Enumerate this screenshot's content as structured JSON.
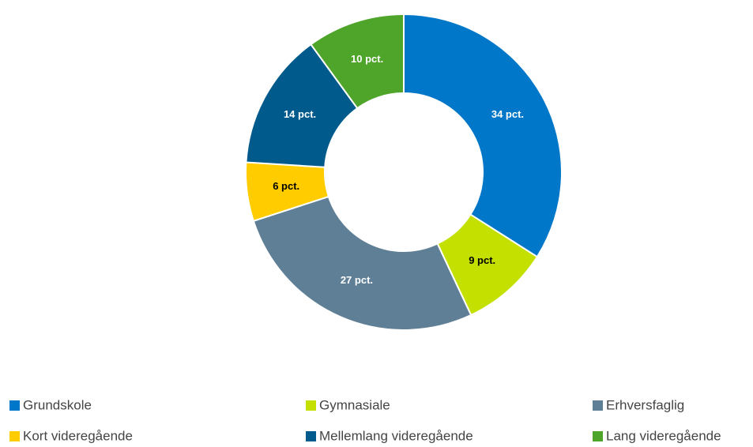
{
  "chart_data": {
    "type": "donut",
    "categories": [
      "Grundskole",
      "Gymnasiale",
      "Erhversfaglig",
      "Kort videregående",
      "Mellemlang videregående",
      "Lang videregående"
    ],
    "values": [
      34,
      9,
      27,
      6,
      14,
      10
    ],
    "value_labels": [
      "34 pct.",
      "9 pct.",
      "27 pct.",
      "6 pct.",
      "14 pct.",
      "10 pct."
    ],
    "colors": [
      "#0077c8",
      "#c3e000",
      "#5f7f96",
      "#ffcc00",
      "#005a8c",
      "#4fa52a"
    ],
    "legend": "bottom"
  }
}
